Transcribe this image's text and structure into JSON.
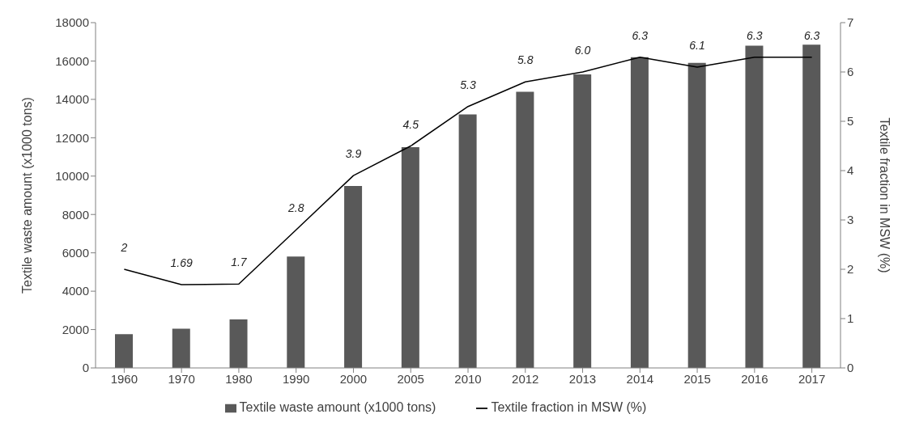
{
  "chart_data": {
    "type": "bar",
    "categories": [
      "1960",
      "1970",
      "1980",
      "1990",
      "2000",
      "2005",
      "2010",
      "2012",
      "2013",
      "2014",
      "2015",
      "2016",
      "2017"
    ],
    "ylabel": "Textile waste amount (x1000 tons)",
    "y2label": "Textile fraction in MSW (%)",
    "ylim": [
      0,
      18000
    ],
    "yticks": [
      0,
      2000,
      4000,
      6000,
      8000,
      10000,
      12000,
      14000,
      16000,
      18000
    ],
    "y2lim": [
      0,
      7
    ],
    "y2ticks": [
      0,
      1,
      2,
      3,
      4,
      5,
      6,
      7
    ],
    "legend": "bottom",
    "marker": "none",
    "line_style": "solid",
    "series": [
      {
        "name": "Textile waste amount (x1000 tons)",
        "color": "#595959",
        "values": [
          1760,
          2040,
          2530,
          5810,
          9480,
          11510,
          13220,
          14400,
          15300,
          16200,
          15900,
          16800,
          16850
        ]
      },
      {
        "name": "Textile fraction in MSW (%)",
        "type": "line",
        "axis": "y2",
        "color": "#000000",
        "values": [
          2,
          1.69,
          1.7,
          2.8,
          3.9,
          4.5,
          5.3,
          5.8,
          6.0,
          6.3,
          6.1,
          6.3,
          6.3
        ],
        "value_labels": [
          "2",
          "1.69",
          "1.7",
          "2.8",
          "3.9",
          "4.5",
          "5.3",
          "5.8",
          "6.0",
          "6.3",
          "6.1",
          "6.3",
          "6.3"
        ]
      }
    ]
  }
}
